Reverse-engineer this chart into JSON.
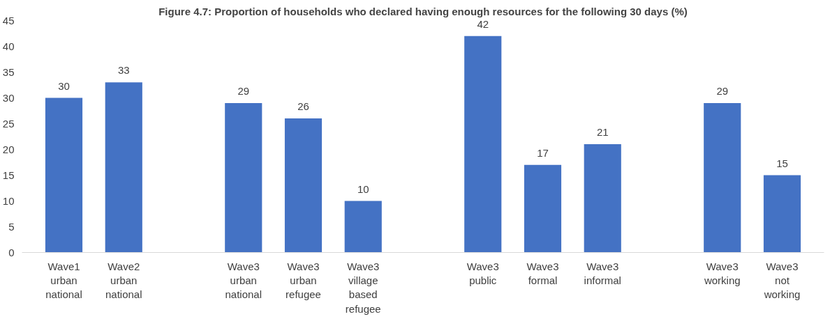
{
  "chart_data": {
    "type": "bar",
    "title": "Figure 4.7: Proportion of households who declared having enough resources for the following 30 days (%)",
    "categories": [
      "Wave1 urban national",
      "Wave2 urban national",
      null,
      "Wave3 urban national",
      "Wave3 urban refugee",
      "Wave3 village based refugee",
      null,
      "Wave3 public",
      "Wave3 formal",
      "Wave3 informal",
      null,
      "Wave3 working",
      "Wave3 not working"
    ],
    "values": [
      30,
      33,
      null,
      29,
      26,
      10,
      null,
      42,
      17,
      21,
      null,
      29,
      15
    ],
    "color": "#4472c4",
    "data_labels": true,
    "ylim": [
      0,
      45
    ],
    "yticks": [
      0,
      5,
      10,
      15,
      20,
      25,
      30,
      35,
      40,
      45
    ],
    "grid": false
  }
}
